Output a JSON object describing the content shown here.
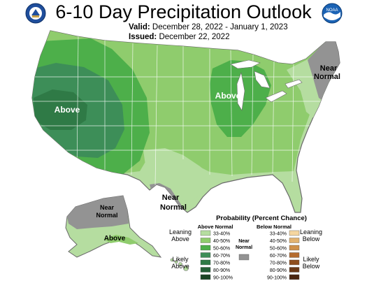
{
  "header": {
    "title": "6-10 Day Precipitation Outlook",
    "valid_label": "Valid:",
    "valid_value": "December 28, 2022 - January 1, 2023",
    "issued_label": "Issued:",
    "issued_value": "December 22, 2022",
    "noaa_text": "NOAA"
  },
  "map": {
    "labels": {
      "above_west": "Above",
      "above_midwest": "Above",
      "near_normal_northeast": "Near Normal",
      "near_normal_texas": "Near Normal",
      "near_normal_alaska": "Near Normal",
      "above_alaska": "Above"
    },
    "colors": {
      "above_33_40": "#b5dda0",
      "above_40_50": "#8fcc6d",
      "above_50_60": "#4daf4a",
      "above_60_70": "#3d8e58",
      "near_normal": "#939393",
      "state_border": "#ffffff",
      "outline": "#6a6a6a"
    }
  },
  "legend": {
    "title": "Probability (Percent Chance)",
    "above_header": "Above Normal",
    "below_header": "Below Normal",
    "near_normal_label": "Near Normal",
    "leaning_above": "Leaning Above",
    "likely_above": "Likely Above",
    "leaning_below": "Leaning Below",
    "likely_below": "Likely Below",
    "ranges": [
      "33-40%",
      "40-50%",
      "50-60%",
      "60-70%",
      "70-80%",
      "80-90%",
      "90-100%"
    ],
    "above_colors": [
      "#b5dda0",
      "#8fcc6d",
      "#4daf4a",
      "#3d8e58",
      "#2f7a46",
      "#245f36",
      "#1a4424"
    ],
    "below_colors": [
      "#f5d6a0",
      "#e2b270",
      "#cf904a",
      "#b56b2e",
      "#8f4e1e",
      "#6a3816",
      "#4a2510"
    ],
    "near_color": "#939393"
  }
}
